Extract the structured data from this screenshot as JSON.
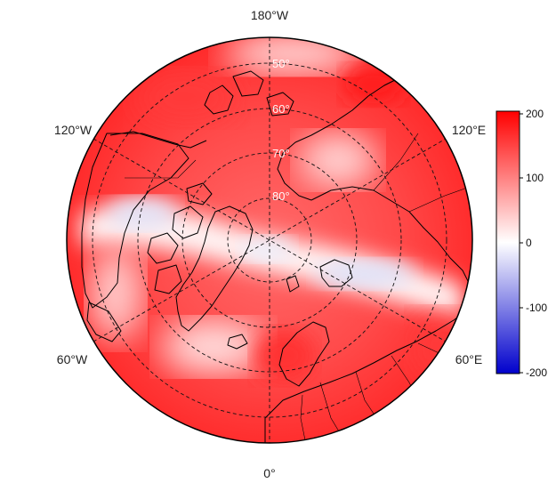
{
  "map": {
    "projection": "north-polar-stereographic",
    "longitude_labels": {
      "top": "180°W",
      "upper_left": "120°W",
      "upper_right": "120°E",
      "lower_left": "60°W",
      "lower_right": "60°E",
      "bottom": "0°"
    },
    "latitude_labels": [
      "50°",
      "60°",
      "70°",
      "80°"
    ]
  },
  "colorbar": {
    "ticks": [
      "200",
      "100",
      "0",
      "-100",
      "-200"
    ],
    "min": -200,
    "max": 200,
    "colors": {
      "high": "#ff0000",
      "mid": "#ffffff",
      "low": "#0000cc"
    }
  }
}
